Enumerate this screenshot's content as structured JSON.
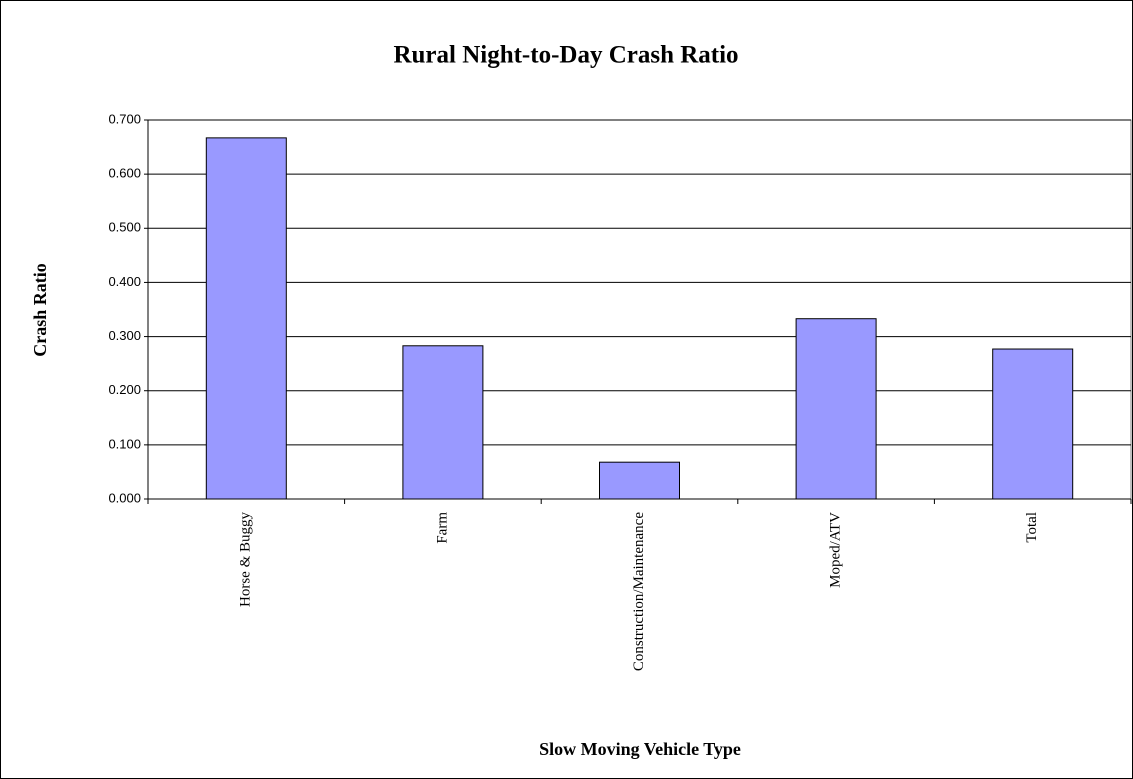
{
  "chart_data": {
    "type": "bar",
    "title": "Rural Night-to-Day Crash Ratio",
    "x_label": "Slow Moving Vehicle Type",
    "y_label": "Crash Ratio",
    "categories": [
      "Horse & Buggy",
      "Farm",
      "Construction/Maintenance",
      "Moped/ATV",
      "Total"
    ],
    "values": [
      0.667,
      0.283,
      0.068,
      0.333,
      0.277
    ],
    "color": "#9999ff",
    "ylim": [
      0,
      0.7
    ],
    "yticks": [
      {
        "value": 0,
        "label": "0.000"
      },
      {
        "value": 0.1,
        "label": "0.100"
      },
      {
        "value": 0.2,
        "label": "0.200"
      },
      {
        "value": 0.3,
        "label": "0.300"
      },
      {
        "value": 0.4,
        "label": "0.400"
      },
      {
        "value": 0.5,
        "label": "0.500"
      },
      {
        "value": 0.6,
        "label": "0.600"
      },
      {
        "value": 0.7,
        "label": "0.700"
      }
    ],
    "grid": true
  }
}
